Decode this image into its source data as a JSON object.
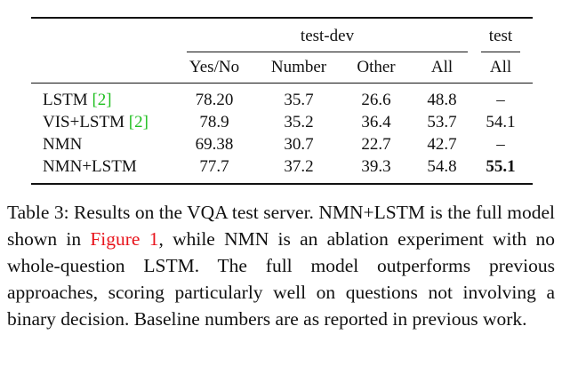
{
  "table": {
    "group_headers": [
      "test-dev",
      "test"
    ],
    "columns": [
      "Yes/No",
      "Number",
      "Other",
      "All",
      "All"
    ],
    "rows": [
      {
        "name": "LSTM",
        "cite": "[2]",
        "values": [
          "78.20",
          "35.7",
          "26.6",
          "48.8",
          "–"
        ]
      },
      {
        "name": "VIS+LSTM",
        "cite": "[2]",
        "values": [
          "78.9",
          "35.2",
          "36.4",
          "53.7",
          "54.1"
        ]
      },
      {
        "name": "NMN",
        "values": [
          "69.38",
          "30.7",
          "22.7",
          "42.7",
          "–"
        ]
      },
      {
        "name": "NMN+LSTM",
        "values": [
          "77.7",
          "37.2",
          "39.3",
          "54.8",
          "55.1"
        ],
        "bold_column": 4
      }
    ]
  },
  "caption": {
    "before_link": "Table 3: Results on the VQA test server. NMN+LSTM is the full model shown in ",
    "link": "Figure 1",
    "after_link": ", while NMN is an ablation experiment with no whole-question LSTM. The full model outperforms previous approaches, scoring particularly well on questions not involving a binary decision. Baseline numbers are as reported in previous work."
  }
}
